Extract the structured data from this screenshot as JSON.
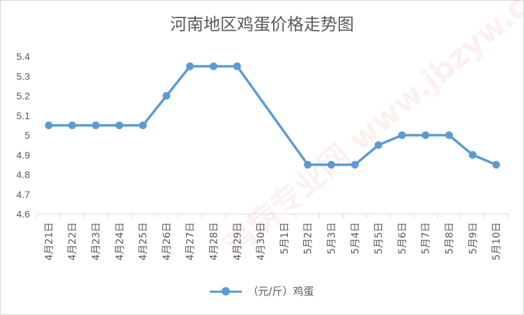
{
  "chart_data": {
    "type": "line",
    "title": "河南地区鸡蛋价格走势图",
    "categories": [
      "4月21日",
      "4月22日",
      "4月23日",
      "4月24日",
      "4月25日",
      "4月26日",
      "4月27日",
      "4月28日",
      "4月29日",
      "4月30日",
      "5月1日",
      "5月2日",
      "5月3日",
      "5月4日",
      "5月5日",
      "5月6日",
      "5月7日",
      "5月8日",
      "5月9日",
      "5月10日"
    ],
    "series": [
      {
        "name": "（元/斤）鸡蛋",
        "values": [
          5.05,
          5.05,
          5.05,
          5.05,
          5.05,
          5.2,
          5.35,
          5.35,
          5.35,
          null,
          null,
          4.85,
          4.85,
          4.85,
          4.95,
          5.0,
          5.0,
          5.0,
          4.9,
          4.85
        ],
        "color": "#5b9bd5"
      }
    ],
    "ylim": [
      4.6,
      5.4
    ],
    "yticks": [
      "4.6",
      "4.7",
      "4.8",
      "4.9",
      "5",
      "5.1",
      "5.2",
      "5.3",
      "5.4"
    ],
    "grid": false,
    "legend": "bottom",
    "gaps": "span"
  },
  "watermark": {
    "text": "鸡病专业网 www.jbzyw.com"
  }
}
